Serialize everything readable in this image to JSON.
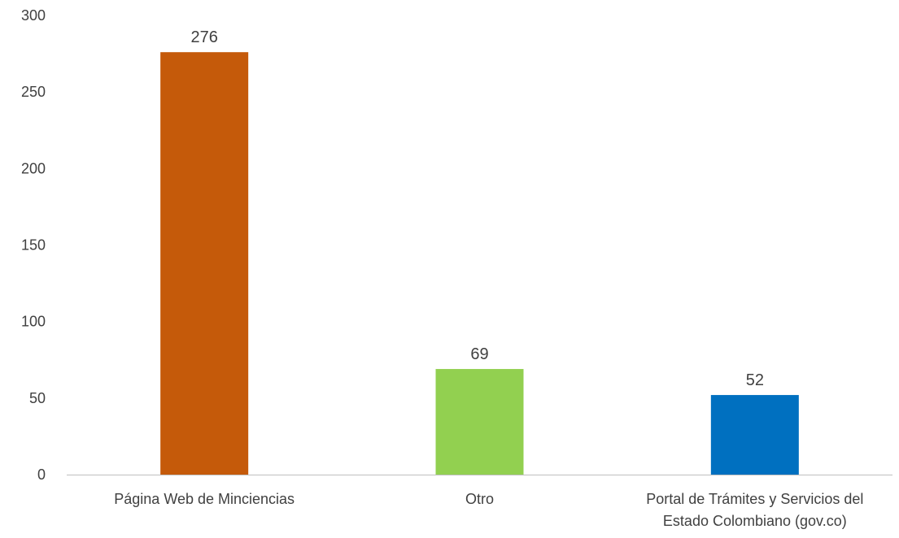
{
  "chart_data": {
    "type": "bar",
    "title": "",
    "xlabel": "",
    "ylabel": "",
    "ylim": [
      0,
      300
    ],
    "yticks": [
      0,
      50,
      100,
      150,
      200,
      250,
      300
    ],
    "grid": false,
    "legend": "none",
    "categories": [
      [
        "Página Web de Minciencias"
      ],
      [
        "Otro"
      ],
      [
        "Portal de Trámites y Servicios del",
        "Estado Colombiano (gov.co)"
      ]
    ],
    "values": [
      276,
      69,
      52
    ],
    "colors": [
      "#C55A0A",
      "#92D050",
      "#0070C0"
    ],
    "data_labels": true
  },
  "colors": {
    "axis": "#BFBFBF",
    "text": "#404040"
  }
}
